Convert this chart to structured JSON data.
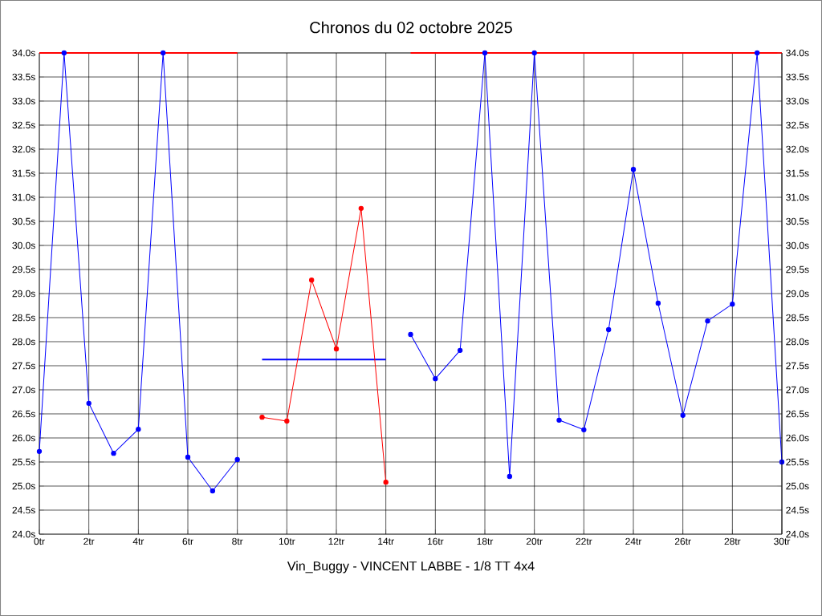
{
  "chart_data": {
    "type": "line",
    "title": "Chronos du 02 octobre 2025",
    "annotations": [
      "Vin_Buggy - VINCENT LABBE - 1/8 TT 4x4"
    ],
    "xlim": [
      0,
      30
    ],
    "xticks": [
      {
        "value": 0,
        "label": "0tr"
      },
      {
        "value": 2,
        "label": "2tr"
      },
      {
        "value": 4,
        "label": "4tr"
      },
      {
        "value": 6,
        "label": "6tr"
      },
      {
        "value": 8,
        "label": "8tr"
      },
      {
        "value": 10,
        "label": "10tr"
      },
      {
        "value": 12,
        "label": "12tr"
      },
      {
        "value": 14,
        "label": "14tr"
      },
      {
        "value": 16,
        "label": "16tr"
      },
      {
        "value": 18,
        "label": "18tr"
      },
      {
        "value": 20,
        "label": "20tr"
      },
      {
        "value": 22,
        "label": "22tr"
      },
      {
        "value": 24,
        "label": "24tr"
      },
      {
        "value": 26,
        "label": "26tr"
      },
      {
        "value": 28,
        "label": "28tr"
      },
      {
        "value": 30,
        "label": "30tr"
      }
    ],
    "ylim": [
      24,
      34
    ],
    "yticks": [
      {
        "value": 24,
        "label": "24.0s"
      },
      {
        "value": 24.5,
        "label": "24.5s"
      },
      {
        "value": 25,
        "label": "25.0s"
      },
      {
        "value": 25.5,
        "label": "25.5s"
      },
      {
        "value": 26,
        "label": "26.0s"
      },
      {
        "value": 26.5,
        "label": "26.5s"
      },
      {
        "value": 27,
        "label": "27.0s"
      },
      {
        "value": 27.5,
        "label": "27.5s"
      },
      {
        "value": 28,
        "label": "28.0s"
      },
      {
        "value": 28.5,
        "label": "28.5s"
      },
      {
        "value": 29,
        "label": "29.0s"
      },
      {
        "value": 29.5,
        "label": "29.5s"
      },
      {
        "value": 30,
        "label": "30.0s"
      },
      {
        "value": 30.5,
        "label": "30.5s"
      },
      {
        "value": 31,
        "label": "31.0s"
      },
      {
        "value": 31.5,
        "label": "31.5s"
      },
      {
        "value": 32,
        "label": "32.0s"
      },
      {
        "value": 32.5,
        "label": "32.5s"
      },
      {
        "value": 33,
        "label": "33.0s"
      },
      {
        "value": 33.5,
        "label": "33.5s"
      },
      {
        "value": 34,
        "label": "34.0s"
      }
    ],
    "y2lim": [
      24,
      34
    ],
    "y2ticks": [
      {
        "value": 24,
        "label": "24.0s"
      },
      {
        "value": 24.5,
        "label": "24.5s"
      },
      {
        "value": 25,
        "label": "25.0s"
      },
      {
        "value": 25.5,
        "label": "25.5s"
      },
      {
        "value": 26,
        "label": "26.0s"
      },
      {
        "value": 26.5,
        "label": "26.5s"
      },
      {
        "value": 27,
        "label": "27.0s"
      },
      {
        "value": 27.5,
        "label": "27.5s"
      },
      {
        "value": 28,
        "label": "28.0s"
      },
      {
        "value": 28.5,
        "label": "28.5s"
      },
      {
        "value": 29,
        "label": "29.0s"
      },
      {
        "value": 29.5,
        "label": "29.5s"
      },
      {
        "value": 30,
        "label": "30.0s"
      },
      {
        "value": 30.5,
        "label": "30.5s"
      },
      {
        "value": 31,
        "label": "31.0s"
      },
      {
        "value": 31.5,
        "label": "31.5s"
      },
      {
        "value": 32,
        "label": "32.0s"
      },
      {
        "value": 32.5,
        "label": "32.5s"
      },
      {
        "value": 33,
        "label": "33.0s"
      },
      {
        "value": 33.5,
        "label": "33.5s"
      },
      {
        "value": 34,
        "label": "34.0s"
      }
    ],
    "grid": true,
    "series": [
      {
        "color": "#ff0000",
        "marker": "none",
        "x": [
          0,
          8
        ],
        "values": [
          34,
          34
        ]
      },
      {
        "color": "#ff0000",
        "marker": "none",
        "x": [
          15,
          30
        ],
        "values": [
          34,
          34
        ]
      },
      {
        "color": "#0000ff",
        "marker": "none",
        "x": [
          9,
          14
        ],
        "values": [
          27.63,
          27.63
        ]
      },
      {
        "color": "#0000ff",
        "marker": "circle",
        "x": [
          0,
          1,
          2,
          3,
          4,
          5,
          6,
          7,
          8
        ],
        "values": [
          25.72,
          34,
          26.72,
          25.68,
          26.18,
          34,
          25.6,
          24.9,
          25.55
        ]
      },
      {
        "color": "#ff0000",
        "marker": "circle",
        "x": [
          9,
          10,
          11,
          12,
          13,
          14
        ],
        "values": [
          26.43,
          26.35,
          29.28,
          27.85,
          30.77,
          25.08
        ]
      },
      {
        "color": "#0000ff",
        "marker": "circle",
        "x": [
          15,
          16,
          17,
          18,
          19,
          20,
          21,
          22,
          23,
          24,
          25,
          26,
          27,
          28,
          29,
          30
        ],
        "values": [
          28.15,
          27.23,
          27.82,
          34,
          25.2,
          34,
          26.37,
          26.17,
          28.25,
          31.58,
          28.8,
          26.47,
          28.43,
          28.78,
          34,
          25.5
        ]
      }
    ]
  }
}
